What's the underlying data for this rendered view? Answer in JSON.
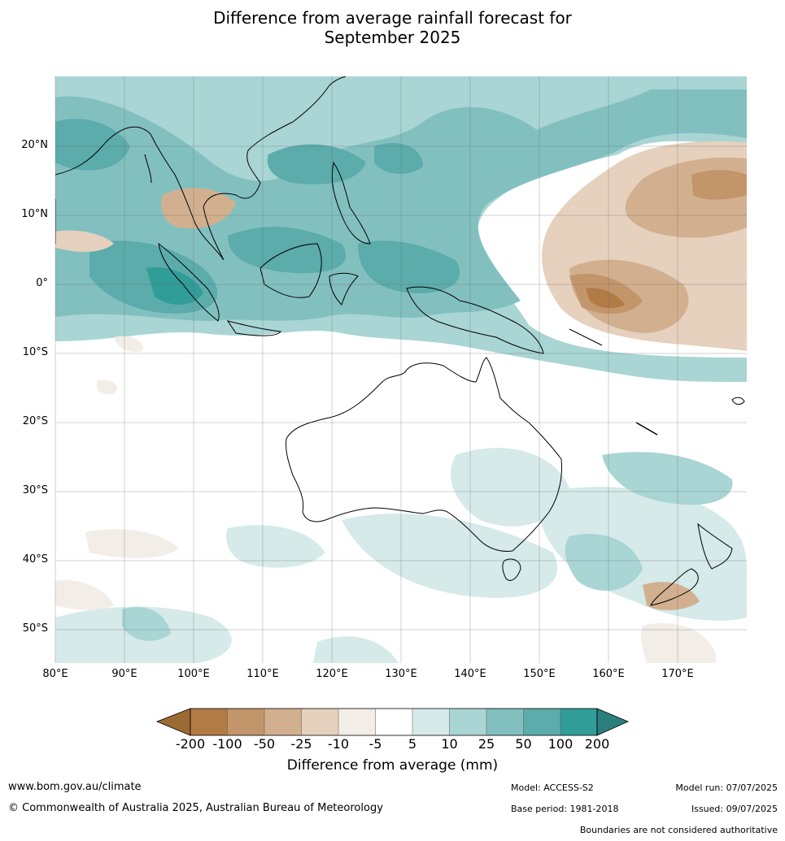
{
  "title_line1": "Difference from average rainfall forecast for",
  "title_line2": "September 2025",
  "map": {
    "lon_labels": [
      "80°E",
      "90°E",
      "100°E",
      "110°E",
      "120°E",
      "130°E",
      "140°E",
      "150°E",
      "160°E",
      "170°E"
    ],
    "lat_labels": [
      "20°N",
      "10°N",
      "0°",
      "10°S",
      "20°S",
      "30°S",
      "40°S",
      "50°S"
    ]
  },
  "colorbar": {
    "title": "Difference from average (mm)",
    "tick_labels": [
      "-200",
      "-100",
      "-50",
      "-25",
      "-10",
      "-5",
      "5",
      "10",
      "25",
      "50",
      "100",
      "200"
    ],
    "colors": [
      "#9c6a34",
      "#b27a45",
      "#c2956a",
      "#d2b08f",
      "#e5d1bd",
      "#f2ede7",
      "#ffffff",
      "#d5eae9",
      "#a9d5d4",
      "#82c0bf",
      "#5bacab",
      "#319d99",
      "#2a7f7c"
    ]
  },
  "footer": {
    "website": "www.bom.gov.au/climate",
    "copyright": "© Commonwealth of Australia 2025, Australian Bureau of Meteorology",
    "model": "Model: ACCESS-S2",
    "base_period": "Base period: 1981-2018",
    "model_run": "Model run: 07/07/2025",
    "issued": "Issued: 09/07/2025",
    "disclaimer": "Boundaries are not considered authoritative"
  }
}
